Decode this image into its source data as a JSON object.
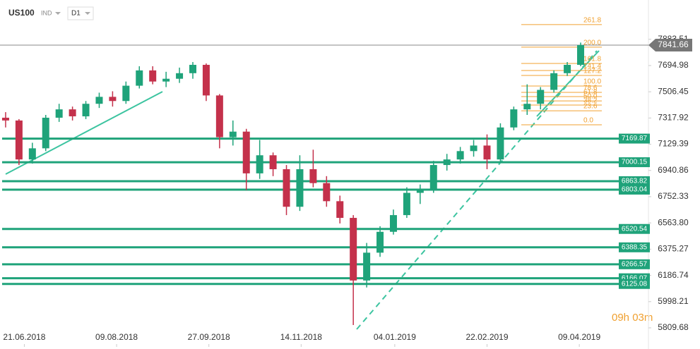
{
  "chart_data": {
    "type": "candlestick",
    "symbol": "US100",
    "market": "IND",
    "timeframe": "D1",
    "countdown": "09h 03m",
    "up_color": "#1fa37a",
    "down_color": "#c4314b",
    "ylim": [
      5683,
      8166
    ],
    "yticks": [
      7883.51,
      7694.98,
      7506.45,
      7317.92,
      7129.39,
      6940.86,
      6752.33,
      {
        "value": 6563.8,
        "label": "6563.80"
      },
      6375.27,
      6186.74,
      5998.21,
      5809.68
    ],
    "xlim": [
      -0.42,
      48.07
    ],
    "xticks": [
      {
        "value": 1.4,
        "label": "21.06.2018"
      },
      {
        "value": 8.3,
        "label": "09.08.2018"
      },
      {
        "value": 15.2,
        "label": "27.09.2018"
      },
      {
        "value": 22.1,
        "label": "14.11.2018"
      },
      {
        "value": 29.1,
        "label": "04.01.2019"
      },
      {
        "value": 36.0,
        "label": "22.02.2019"
      },
      {
        "value": 42.9,
        "label": "09.04.2019"
      }
    ],
    "series": [
      {
        "name": "US100",
        "values": [
          [
            7320,
            7360,
            7250,
            7300
          ],
          [
            7300,
            7310,
            6980,
            7020
          ],
          [
            7020,
            7140,
            6990,
            7100
          ],
          [
            7100,
            7340,
            7080,
            7320
          ],
          [
            7320,
            7420,
            7290,
            7380
          ],
          [
            7380,
            7400,
            7300,
            7330
          ],
          [
            7330,
            7440,
            7310,
            7420
          ],
          [
            7420,
            7500,
            7390,
            7470
          ],
          [
            7470,
            7510,
            7400,
            7440
          ],
          [
            7440,
            7580,
            7420,
            7550
          ],
          [
            7550,
            7690,
            7530,
            7660
          ],
          [
            7660,
            7690,
            7560,
            7580
          ],
          [
            7580,
            7650,
            7540,
            7600
          ],
          [
            7600,
            7680,
            7570,
            7640
          ],
          [
            7640,
            7720,
            7600,
            7700
          ],
          [
            7700,
            7710,
            7440,
            7480
          ],
          [
            7480,
            7490,
            7100,
            7180
          ],
          [
            7180,
            7300,
            7120,
            7220
          ],
          [
            7220,
            7240,
            6800,
            6920
          ],
          [
            6920,
            7160,
            6880,
            7050
          ],
          [
            7050,
            7070,
            6900,
            6950
          ],
          [
            6950,
            6980,
            6620,
            6680
          ],
          [
            6680,
            7050,
            6650,
            6950
          ],
          [
            6950,
            7090,
            6820,
            6850
          ],
          [
            6850,
            6900,
            6680,
            6720
          ],
          [
            6720,
            6760,
            6560,
            6600
          ],
          [
            6600,
            6620,
            5830,
            6150
          ],
          [
            6150,
            6420,
            6100,
            6350
          ],
          [
            6350,
            6540,
            6320,
            6500
          ],
          [
            6500,
            6660,
            6480,
            6620
          ],
          [
            6620,
            6820,
            6600,
            6780
          ],
          [
            6780,
            6840,
            6700,
            6800
          ],
          [
            6800,
            7010,
            6780,
            6980
          ],
          [
            6980,
            7060,
            6940,
            7020
          ],
          [
            7020,
            7110,
            6990,
            7080
          ],
          [
            7080,
            7160,
            7040,
            7120
          ],
          [
            7120,
            7200,
            6950,
            7020
          ],
          [
            7020,
            7280,
            7000,
            7250
          ],
          [
            7250,
            7400,
            7230,
            7380
          ],
          [
            7380,
            7560,
            7340,
            7420
          ],
          [
            7420,
            7540,
            7380,
            7520
          ],
          [
            7520,
            7660,
            7500,
            7640
          ],
          [
            7640,
            7720,
            7620,
            7700
          ],
          [
            7700,
            7860,
            7690,
            7842
          ]
        ]
      }
    ],
    "levels": [
      7169.87,
      7000.15,
      6863.82,
      6803.04,
      6520.54,
      6388.35,
      6266.57,
      6166.07,
      6125.08
    ],
    "level_color": "#1fa37a",
    "last_price": 7841.66,
    "fibonacci": {
      "color": "#f0a030",
      "labels": [
        "261.8",
        "200.0",
        "161.8",
        "141.4",
        "127.2",
        "100.0",
        "78.6",
        "61.8",
        "50.0",
        "38.2",
        "23.6",
        "0.0"
      ],
      "prices": [
        7989,
        7827,
        7710,
        7659,
        7624,
        7548,
        7502,
        7472,
        7441,
        7411,
        7370,
        7269
      ]
    }
  }
}
